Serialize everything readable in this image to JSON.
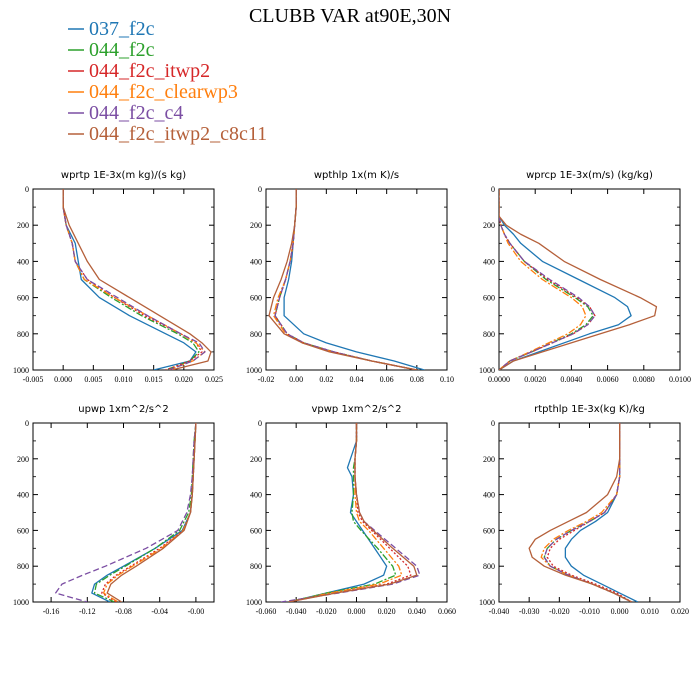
{
  "title": "CLUBB VAR at90E,30N",
  "series_styles": [
    {
      "name": "037_f2c",
      "color": "#1f77b4",
      "dash": "solid"
    },
    {
      "name": "044_f2c",
      "color": "#2ca02c",
      "dash": "dashdot"
    },
    {
      "name": "044_f2c_itwp2",
      "color": "#d62728",
      "dash": "dotted"
    },
    {
      "name": "044_f2c_clearwp3",
      "color": "#ff7f0e",
      "dash": "dashdot"
    },
    {
      "name": "044_f2c_c4",
      "color": "#7b4ea3",
      "dash": "dashed"
    },
    {
      "name": "044_f2c_itwp2_c8c11",
      "color": "#b5603a",
      "dash": "solid"
    }
  ],
  "chart_data": [
    {
      "type": "line",
      "title": "wprtp  1E-3x(m kg)/(s kg)",
      "xlim": [
        -0.005,
        0.025
      ],
      "xticks": [
        "-0.005",
        "0.000",
        "0.005",
        "0.010",
        "0.015",
        "0.020",
        "0.025"
      ],
      "ylim": [
        0,
        1000
      ],
      "yticks": [
        "0",
        "200",
        "400",
        "600",
        "800",
        "1000"
      ],
      "y": [
        0,
        100,
        200,
        300,
        400,
        500,
        600,
        700,
        800,
        850,
        900,
        950,
        1000
      ],
      "series": [
        {
          "name": "037_f2c",
          "values": [
            0.0,
            0.0,
            0.0005,
            0.002,
            0.0025,
            0.003,
            0.006,
            0.011,
            0.017,
            0.02,
            0.022,
            0.021,
            0.015
          ]
        },
        {
          "name": "044_f2c",
          "values": [
            0.0,
            0.0,
            0.0005,
            0.0015,
            0.002,
            0.0035,
            0.008,
            0.013,
            0.019,
            0.0215,
            0.0225,
            0.021,
            0.017
          ]
        },
        {
          "name": "044_f2c_itwp2",
          "values": [
            0.0,
            0.0,
            0.0005,
            0.0015,
            0.002,
            0.004,
            0.0085,
            0.0135,
            0.0195,
            0.022,
            0.023,
            0.021,
            0.017
          ]
        },
        {
          "name": "044_f2c_clearwp3",
          "values": [
            0.0,
            0.0,
            0.0005,
            0.0015,
            0.002,
            0.0035,
            0.0085,
            0.014,
            0.0195,
            0.022,
            0.0235,
            0.0215,
            0.0175
          ]
        },
        {
          "name": "044_f2c_c4",
          "values": [
            0.0,
            0.0,
            0.0005,
            0.0015,
            0.002,
            0.004,
            0.009,
            0.014,
            0.0195,
            0.0225,
            0.0235,
            0.0215,
            0.0175
          ]
        },
        {
          "name": "044_f2c_itwp2_c8c11",
          "values": [
            0.0,
            0.0,
            0.001,
            0.0025,
            0.004,
            0.006,
            0.011,
            0.016,
            0.021,
            0.023,
            0.0245,
            0.024,
            0.018
          ]
        }
      ]
    },
    {
      "type": "line",
      "title": "wpthlp  1x(m K)/s",
      "xlim": [
        -0.02,
        0.1
      ],
      "xticks": [
        "-0.02",
        "0.00",
        "0.02",
        "0.04",
        "0.06",
        "0.08",
        "0.10"
      ],
      "ylim": [
        0,
        1000
      ],
      "yticks": [
        "0",
        "200",
        "400",
        "600",
        "800",
        "1000"
      ],
      "y": [
        0,
        100,
        200,
        300,
        400,
        500,
        600,
        700,
        800,
        850,
        900,
        950,
        1000
      ],
      "series": [
        {
          "name": "037_f2c",
          "values": [
            0.0,
            0.0,
            -0.001,
            -0.002,
            -0.003,
            -0.005,
            -0.008,
            -0.008,
            0.005,
            0.02,
            0.04,
            0.065,
            0.085
          ]
        },
        {
          "name": "044_f2c",
          "values": [
            0.0,
            0.0,
            -0.001,
            -0.002,
            -0.004,
            -0.007,
            -0.011,
            -0.014,
            -0.006,
            0.005,
            0.025,
            0.05,
            0.08
          ]
        },
        {
          "name": "044_f2c_itwp2",
          "values": [
            0.0,
            0.0,
            -0.001,
            -0.002,
            -0.004,
            -0.007,
            -0.011,
            -0.014,
            -0.006,
            0.005,
            0.025,
            0.05,
            0.08
          ]
        },
        {
          "name": "044_f2c_clearwp3",
          "values": [
            0.0,
            0.0,
            -0.001,
            -0.002,
            -0.004,
            -0.007,
            -0.012,
            -0.015,
            -0.007,
            0.004,
            0.024,
            0.05,
            0.08
          ]
        },
        {
          "name": "044_f2c_c4",
          "values": [
            0.0,
            0.0,
            -0.001,
            -0.002,
            -0.004,
            -0.007,
            -0.011,
            -0.014,
            -0.006,
            0.005,
            0.025,
            0.05,
            0.08
          ]
        },
        {
          "name": "044_f2c_itwp2_c8c11",
          "values": [
            0.0,
            0.0,
            -0.001,
            -0.003,
            -0.006,
            -0.01,
            -0.015,
            -0.018,
            -0.008,
            0.004,
            0.022,
            0.05,
            0.08
          ]
        }
      ]
    },
    {
      "type": "line",
      "title": "wprcp  1E-3x(m/s) (kg/kg)",
      "xlim": [
        0.0,
        0.01
      ],
      "xticks": [
        "0.0000",
        "0.0020",
        "0.0040",
        "0.0060",
        "0.0080",
        "0.0100"
      ],
      "ylim": [
        0,
        1000
      ],
      "yticks": [
        "0",
        "200",
        "400",
        "600",
        "800",
        "1000"
      ],
      "y": [
        0,
        100,
        150,
        200,
        250,
        300,
        400,
        500,
        600,
        650,
        700,
        750,
        800,
        900,
        950,
        1000
      ],
      "series": [
        {
          "name": "037_f2c",
          "values": [
            0.0,
            0.0,
            0.0,
            0.0003,
            0.0008,
            0.0012,
            0.0024,
            0.0044,
            0.0064,
            0.0071,
            0.0073,
            0.0066,
            0.005,
            0.0022,
            0.0008,
            0.0
          ]
        },
        {
          "name": "044_f2c",
          "values": [
            0.0,
            0.0,
            0.0,
            0.0001,
            0.0003,
            0.0006,
            0.0014,
            0.0026,
            0.0042,
            0.0049,
            0.0052,
            0.0048,
            0.004,
            0.0018,
            0.0006,
            0.0
          ]
        },
        {
          "name": "044_f2c_itwp2",
          "values": [
            0.0,
            0.0,
            0.0,
            0.0001,
            0.0003,
            0.0006,
            0.0014,
            0.0027,
            0.0043,
            0.005,
            0.0053,
            0.0049,
            0.0041,
            0.0018,
            0.0006,
            0.0
          ]
        },
        {
          "name": "044_f2c_clearwp3",
          "values": [
            0.0,
            0.0,
            0.0,
            0.0001,
            0.0003,
            0.0005,
            0.0012,
            0.0024,
            0.004,
            0.0046,
            0.0048,
            0.0045,
            0.0038,
            0.0017,
            0.0006,
            0.0
          ]
        },
        {
          "name": "044_f2c_c4",
          "values": [
            0.0,
            0.0,
            0.0,
            0.0001,
            0.0003,
            0.0006,
            0.0014,
            0.0028,
            0.0044,
            0.005,
            0.0053,
            0.0049,
            0.0041,
            0.0018,
            0.0006,
            0.0
          ]
        },
        {
          "name": "044_f2c_itwp2_c8c11",
          "values": [
            0.0,
            0.0,
            0.0,
            0.0004,
            0.0012,
            0.0022,
            0.0036,
            0.0056,
            0.0078,
            0.0087,
            0.0086,
            0.0072,
            0.0056,
            0.0024,
            0.0008,
            0.0
          ]
        }
      ]
    },
    {
      "type": "line",
      "title": "upwp  1xm^2/s^2",
      "xlim": [
        -0.18,
        0.02
      ],
      "xticks": [
        "-0.16",
        "-0.12",
        "-0.08",
        "-0.04",
        "-0.00"
      ],
      "ylim": [
        0,
        1000
      ],
      "yticks": [
        "0",
        "200",
        "400",
        "600",
        "800",
        "1000"
      ],
      "y": [
        0,
        100,
        200,
        300,
        400,
        500,
        600,
        700,
        800,
        850,
        900,
        950,
        1000
      ],
      "series": [
        {
          "name": "037_f2c",
          "values": [
            0.0,
            -0.001,
            -0.002,
            -0.003,
            -0.004,
            -0.006,
            -0.015,
            -0.045,
            -0.08,
            -0.098,
            -0.112,
            -0.115,
            -0.095
          ]
        },
        {
          "name": "044_f2c",
          "values": [
            0.0,
            -0.002,
            -0.003,
            -0.004,
            -0.005,
            -0.008,
            -0.018,
            -0.045,
            -0.078,
            -0.095,
            -0.11,
            -0.112,
            -0.09
          ]
        },
        {
          "name": "044_f2c_itwp2",
          "values": [
            0.0,
            -0.001,
            -0.002,
            -0.003,
            -0.004,
            -0.006,
            -0.014,
            -0.04,
            -0.072,
            -0.088,
            -0.1,
            -0.104,
            -0.088
          ]
        },
        {
          "name": "044_f2c_clearwp3",
          "values": [
            0.0,
            -0.001,
            -0.002,
            -0.003,
            -0.004,
            -0.006,
            -0.014,
            -0.038,
            -0.07,
            -0.086,
            -0.098,
            -0.102,
            -0.086
          ]
        },
        {
          "name": "044_f2c_c4",
          "values": [
            0.0,
            -0.002,
            -0.003,
            -0.004,
            -0.006,
            -0.01,
            -0.02,
            -0.055,
            -0.1,
            -0.125,
            -0.148,
            -0.155,
            -0.12
          ]
        },
        {
          "name": "044_f2c_itwp2_c8c11",
          "values": [
            0.0,
            -0.001,
            -0.002,
            -0.003,
            -0.004,
            -0.006,
            -0.013,
            -0.036,
            -0.066,
            -0.082,
            -0.094,
            -0.098,
            -0.082
          ]
        }
      ]
    },
    {
      "type": "line",
      "title": "vpwp  1xm^2/s^2",
      "xlim": [
        -0.06,
        0.06
      ],
      "xticks": [
        "-0.060",
        "-0.040",
        "-0.020",
        "0.000",
        "0.020",
        "0.040",
        "0.060"
      ],
      "ylim": [
        0,
        1000
      ],
      "yticks": [
        "0",
        "200",
        "400",
        "600",
        "800",
        "1000"
      ],
      "y": [
        0,
        100,
        200,
        250,
        300,
        400,
        500,
        550,
        600,
        700,
        800,
        850,
        900,
        950,
        1000
      ],
      "series": [
        {
          "name": "037_f2c",
          "values": [
            0.0,
            0.0,
            -0.004,
            -0.006,
            -0.003,
            -0.002,
            -0.004,
            0.0,
            0.004,
            0.012,
            0.02,
            0.018,
            0.005,
            -0.02,
            -0.045
          ]
        },
        {
          "name": "044_f2c",
          "values": [
            0.0,
            0.0,
            -0.001,
            -0.002,
            -0.002,
            -0.002,
            -0.003,
            -0.002,
            0.003,
            0.014,
            0.024,
            0.026,
            0.012,
            -0.02,
            -0.045
          ]
        },
        {
          "name": "044_f2c_itwp2",
          "values": [
            0.0,
            0.0,
            -0.001,
            -0.001,
            -0.001,
            0.0,
            0.001,
            0.004,
            0.01,
            0.022,
            0.034,
            0.036,
            0.02,
            -0.015,
            -0.045
          ]
        },
        {
          "name": "044_f2c_clearwp3",
          "values": [
            0.0,
            0.0,
            -0.001,
            -0.001,
            -0.001,
            -0.001,
            0.0,
            0.002,
            0.008,
            0.018,
            0.028,
            0.03,
            0.015,
            -0.018,
            -0.045
          ]
        },
        {
          "name": "044_f2c_c4",
          "values": [
            0.0,
            0.0,
            -0.001,
            -0.001,
            -0.001,
            0.0,
            0.002,
            0.005,
            0.012,
            0.026,
            0.04,
            0.042,
            0.024,
            -0.012,
            -0.05
          ]
        },
        {
          "name": "044_f2c_itwp2_c8c11",
          "values": [
            0.0,
            0.0,
            -0.001,
            -0.001,
            -0.001,
            0.0,
            0.002,
            0.005,
            0.011,
            0.024,
            0.038,
            0.04,
            0.022,
            -0.014,
            -0.045
          ]
        }
      ]
    },
    {
      "type": "line",
      "title": "rtpthlp  1E-3x(kg K)/kg",
      "xlim": [
        -0.04,
        0.02
      ],
      "xticks": [
        "-0.040",
        "-0.030",
        "-0.020",
        "-0.010",
        "0.000",
        "0.010",
        "0.020"
      ],
      "ylim": [
        0,
        1000
      ],
      "yticks": [
        "0",
        "200",
        "400",
        "600",
        "800",
        "1000"
      ],
      "y": [
        0,
        100,
        200,
        300,
        400,
        500,
        550,
        600,
        650,
        700,
        750,
        800,
        850,
        900,
        950,
        1000
      ],
      "series": [
        {
          "name": "037_f2c",
          "values": [
            0.0,
            0.0,
            0.0,
            0.0,
            -0.001,
            -0.004,
            -0.008,
            -0.013,
            -0.016,
            -0.018,
            -0.018,
            -0.016,
            -0.012,
            -0.006,
            0.0,
            0.006
          ]
        },
        {
          "name": "044_f2c",
          "values": [
            0.0,
            0.0,
            0.0,
            0.0,
            -0.001,
            -0.005,
            -0.01,
            -0.016,
            -0.021,
            -0.024,
            -0.025,
            -0.023,
            -0.017,
            -0.009,
            -0.002,
            0.004
          ]
        },
        {
          "name": "044_f2c_itwp2",
          "values": [
            0.0,
            0.0,
            0.0,
            0.0,
            -0.001,
            -0.005,
            -0.01,
            -0.015,
            -0.02,
            -0.023,
            -0.024,
            -0.022,
            -0.016,
            -0.008,
            -0.001,
            0.004
          ]
        },
        {
          "name": "044_f2c_clearwp3",
          "values": [
            0.0,
            0.0,
            0.0,
            0.0,
            -0.001,
            -0.006,
            -0.011,
            -0.017,
            -0.022,
            -0.025,
            -0.026,
            -0.023,
            -0.017,
            -0.009,
            -0.002,
            0.004
          ]
        },
        {
          "name": "044_f2c_c4",
          "values": [
            0.0,
            0.0,
            0.0,
            0.0,
            -0.001,
            -0.005,
            -0.01,
            -0.016,
            -0.021,
            -0.024,
            -0.025,
            -0.023,
            -0.017,
            -0.009,
            -0.002,
            0.004
          ]
        },
        {
          "name": "044_f2c_itwp2_c8c11",
          "values": [
            0.0,
            0.0,
            0.0,
            -0.001,
            -0.004,
            -0.011,
            -0.017,
            -0.023,
            -0.028,
            -0.03,
            -0.029,
            -0.025,
            -0.018,
            -0.009,
            -0.002,
            0.004
          ]
        }
      ]
    }
  ]
}
